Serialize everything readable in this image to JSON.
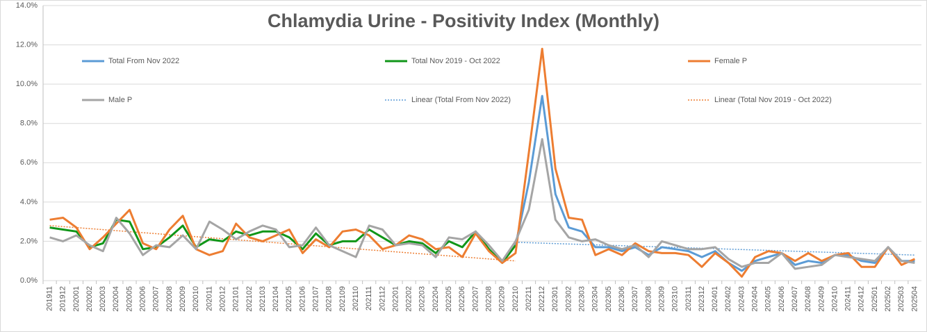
{
  "chart_data": {
    "type": "line",
    "title": "Chlamydia Urine - Positivity Index (Monthly)",
    "categories": [
      "201911",
      "201912",
      "202001",
      "202002",
      "202003",
      "202004",
      "202005",
      "202006",
      "202007",
      "202008",
      "202009",
      "202010",
      "202011",
      "202012",
      "202101",
      "202102",
      "202103",
      "202104",
      "202105",
      "202106",
      "202107",
      "202108",
      "202109",
      "202110",
      "202111",
      "202112",
      "202201",
      "202202",
      "202203",
      "202204",
      "202205",
      "202206",
      "202207",
      "202208",
      "202209",
      "202210",
      "202211",
      "202212",
      "202301",
      "202302",
      "202303",
      "202304",
      "202305",
      "202306",
      "202307",
      "202308",
      "202309",
      "202310",
      "202311",
      "202312",
      "202401",
      "202402",
      "202403",
      "202404",
      "202405",
      "202406",
      "202407",
      "202408",
      "202409",
      "202410",
      "202411",
      "202412",
      "202501",
      "202502",
      "202503",
      "202504"
    ],
    "series": [
      {
        "name": "Total From Nov 2022",
        "color": "#5b9bd5",
        "width": 3,
        "values": [
          null,
          null,
          null,
          null,
          null,
          null,
          null,
          null,
          null,
          null,
          null,
          null,
          null,
          null,
          null,
          null,
          null,
          null,
          null,
          null,
          null,
          null,
          null,
          null,
          null,
          null,
          null,
          null,
          null,
          null,
          null,
          null,
          null,
          null,
          null,
          1.8,
          5.0,
          9.4,
          4.4,
          2.7,
          2.5,
          1.7,
          1.7,
          1.5,
          1.7,
          1.3,
          1.7,
          1.6,
          1.5,
          1.2,
          1.5,
          0.9,
          0.5,
          1.0,
          1.2,
          1.4,
          0.8,
          1.0,
          0.9,
          1.3,
          1.3,
          1.0,
          0.9,
          1.7,
          1.0,
          1.0
        ]
      },
      {
        "name": "Total Nov 2019 - Oct 2022",
        "color": "#109618",
        "width": 3,
        "values": [
          2.7,
          2.6,
          2.5,
          1.7,
          1.9,
          3.1,
          3.0,
          1.6,
          1.7,
          2.2,
          2.8,
          1.7,
          2.1,
          2.0,
          2.5,
          2.3,
          2.5,
          2.5,
          2.2,
          1.6,
          2.4,
          1.8,
          2.0,
          2.0,
          2.6,
          2.2,
          1.8,
          2.0,
          1.9,
          1.4,
          2.0,
          1.7,
          2.5,
          1.6,
          0.9,
          1.8,
          null,
          null,
          null,
          null,
          null,
          null,
          null,
          null,
          null,
          null,
          null,
          null,
          null,
          null,
          null,
          null,
          null,
          null,
          null,
          null,
          null,
          null,
          null,
          null,
          null,
          null,
          null,
          null,
          null,
          null
        ]
      },
      {
        "name": "Female P",
        "color": "#ed7d31",
        "width": 3,
        "values": [
          3.1,
          3.2,
          2.7,
          1.6,
          2.2,
          2.9,
          3.6,
          1.9,
          1.6,
          2.6,
          3.3,
          1.6,
          1.3,
          1.5,
          2.9,
          2.2,
          2.0,
          2.3,
          2.6,
          1.4,
          2.1,
          1.7,
          2.5,
          2.6,
          2.3,
          1.6,
          1.8,
          2.3,
          2.1,
          1.6,
          1.7,
          1.2,
          2.4,
          1.5,
          0.9,
          1.4,
          6.5,
          11.8,
          5.7,
          3.2,
          3.1,
          1.3,
          1.6,
          1.3,
          1.9,
          1.5,
          1.4,
          1.4,
          1.3,
          0.7,
          1.4,
          0.9,
          0.2,
          1.2,
          1.5,
          1.4,
          1.0,
          1.4,
          1.0,
          1.3,
          1.4,
          0.7,
          0.7,
          1.7,
          0.8,
          1.1
        ]
      },
      {
        "name": "Male P",
        "color": "#a5a5a5",
        "width": 3,
        "values": [
          2.2,
          2.0,
          2.3,
          1.8,
          1.5,
          3.2,
          2.4,
          1.3,
          1.8,
          1.7,
          2.3,
          1.6,
          3.0,
          2.6,
          2.1,
          2.5,
          2.8,
          2.6,
          1.7,
          1.8,
          2.7,
          1.8,
          1.5,
          1.2,
          2.8,
          2.6,
          1.8,
          1.9,
          1.8,
          1.2,
          2.2,
          2.1,
          2.5,
          1.8,
          1.0,
          2.0,
          3.6,
          7.2,
          3.1,
          2.2,
          2.0,
          2.1,
          1.8,
          1.6,
          1.8,
          1.2,
          2.0,
          1.8,
          1.6,
          1.6,
          1.7,
          1.1,
          0.7,
          0.9,
          0.9,
          1.4,
          0.6,
          0.7,
          0.8,
          1.3,
          1.2,
          1.1,
          1.0,
          1.7,
          1.0,
          0.9
        ]
      }
    ],
    "trendlines": [
      {
        "name": "Linear (Total From Nov 2022)",
        "color": "#5b9bd5",
        "from": 35,
        "to": 65,
        "start_value": 1.95,
        "end_value": 1.3
      },
      {
        "name": "Linear (Total Nov 2019 - Oct 2022)",
        "color": "#ed7d31",
        "from": 0,
        "to": 35,
        "start_value": 2.8,
        "end_value": 1.0
      }
    ],
    "ylim": [
      0,
      14
    ],
    "yticks": [
      {
        "value": 0,
        "label": "0.0%"
      },
      {
        "value": 2,
        "label": "2.0%"
      },
      {
        "value": 4,
        "label": "4.0%"
      },
      {
        "value": 6,
        "label": "6.0%"
      },
      {
        "value": 8,
        "label": "8.0%"
      },
      {
        "value": 10,
        "label": "10.0%"
      },
      {
        "value": 12,
        "label": "12.0%"
      },
      {
        "value": 14,
        "label": "14.0%"
      }
    ],
    "grid": true
  }
}
